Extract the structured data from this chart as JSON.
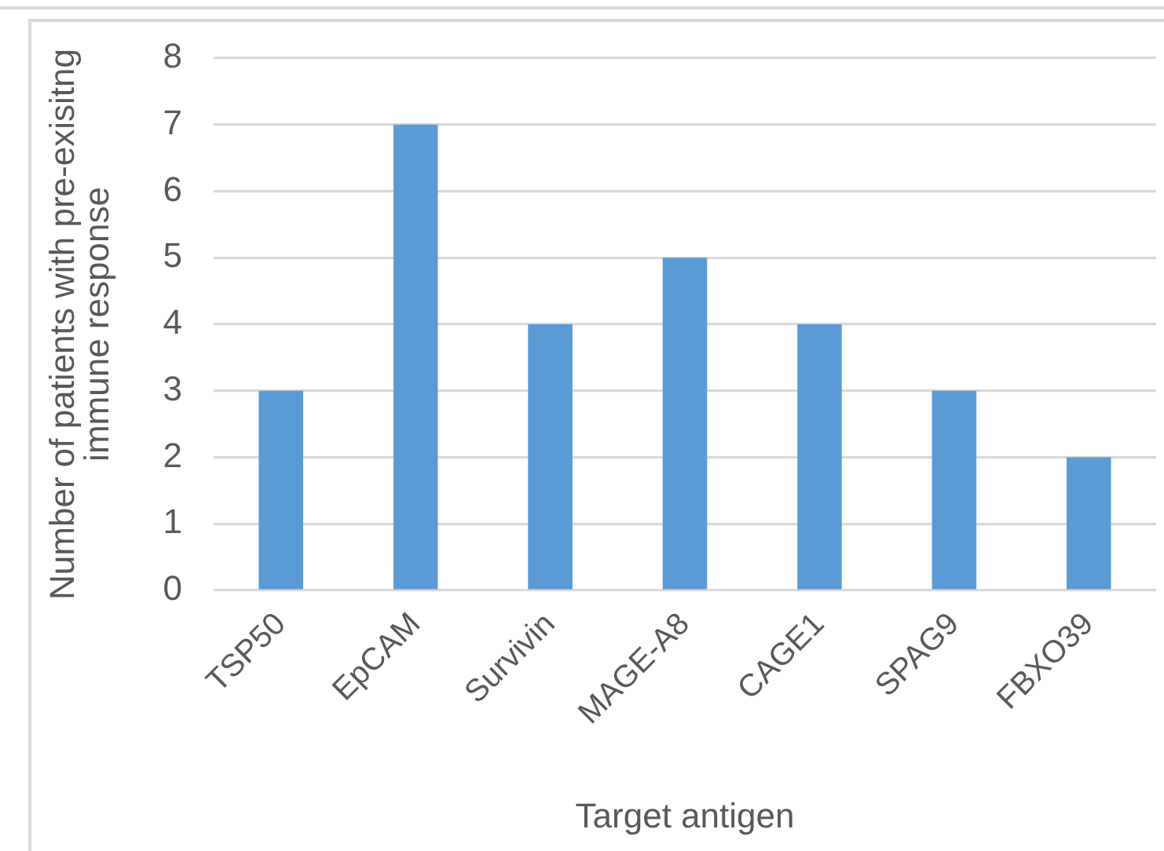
{
  "chart_data": {
    "type": "bar",
    "xlabel": "Target antigen",
    "ylabel": "Number of patients with pre-exisitng\nimmune response",
    "categories": [
      "TSP50",
      "EpCAM",
      "Survivin",
      "MAGE-A8",
      "CAGE1",
      "SPAG9",
      "FBXO39"
    ],
    "values": [
      3,
      7,
      4,
      5,
      4,
      3,
      2
    ],
    "color": "#5b9bd5",
    "ylim": [
      0,
      8
    ],
    "yticks": [
      0,
      1,
      2,
      3,
      4,
      5,
      6,
      7,
      8
    ],
    "grid": "y"
  }
}
